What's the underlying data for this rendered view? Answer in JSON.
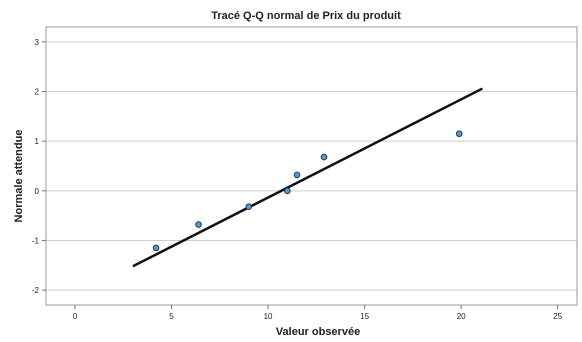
{
  "chart_data": {
    "type": "scatter",
    "title": "Tracé Q-Q normal de Prix du produit",
    "xlabel": "Valeur observée",
    "ylabel": "Normale attendue",
    "xlim": [
      -1.5,
      26
    ],
    "ylim": [
      -2.3,
      3.3
    ],
    "x_ticks": [
      0,
      5,
      10,
      15,
      20,
      25
    ],
    "y_ticks": [
      -2,
      -1,
      0,
      1,
      2,
      3
    ],
    "grid": "horizontal",
    "points": [
      {
        "x": 4.2,
        "y": -1.15
      },
      {
        "x": 6.4,
        "y": -0.68
      },
      {
        "x": 9.0,
        "y": -0.32
      },
      {
        "x": 11.0,
        "y": 0.0
      },
      {
        "x": 11.5,
        "y": 0.32
      },
      {
        "x": 12.9,
        "y": 0.68
      },
      {
        "x": 19.9,
        "y": 1.15
      }
    ],
    "reference_line": {
      "x": [
        3.0,
        21.1
      ],
      "y": [
        -1.52,
        2.06
      ]
    },
    "colors": {
      "point_fill": "#4f9fd6",
      "point_stroke": "#1b3a57",
      "line": "#111111",
      "grid": "#cfcfcf"
    }
  }
}
